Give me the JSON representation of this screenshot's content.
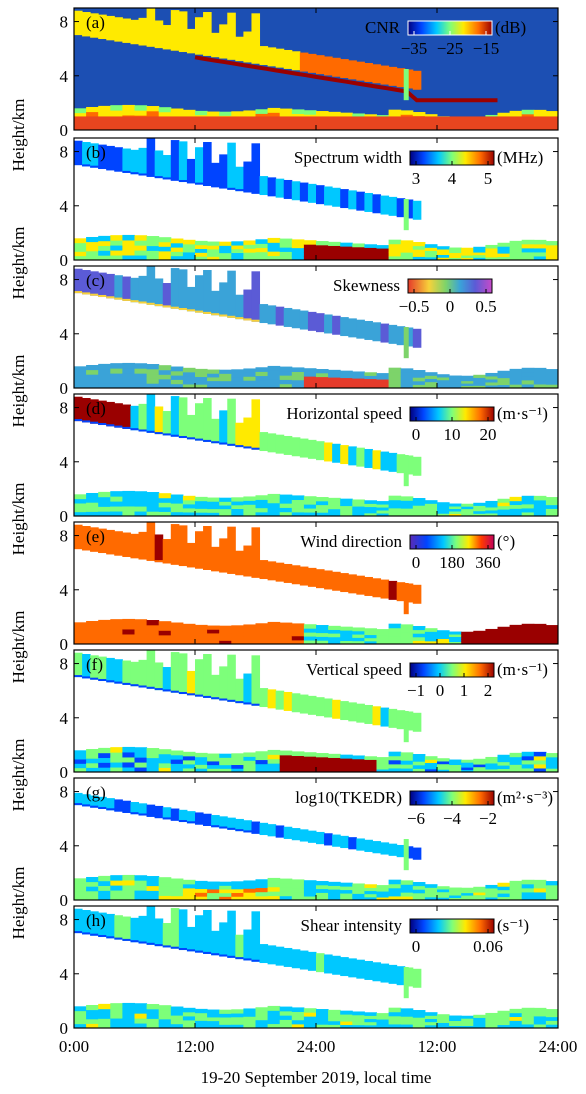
{
  "chart_data": {
    "type": "heatmap",
    "xlabel": "19-20 September 2019, local time",
    "x_ticks": [
      "0:00",
      "12:00",
      "24:00",
      "12:00",
      "24:00"
    ],
    "x_tick_hours": [
      0,
      12,
      24,
      36,
      48
    ],
    "xlim_hours": [
      0,
      48
    ],
    "ylabel": "Height/km",
    "ylim": [
      0,
      9
    ],
    "y_ticks": [
      0,
      4,
      8
    ],
    "grid": false,
    "panels": [
      {
        "id": "a",
        "tag": "(a)",
        "variable": "CNR",
        "unit": "(dB)",
        "colorbar_ticks": [
          "−35",
          "−25",
          "−15"
        ],
        "colormap": "jet",
        "show_ylabel": false
      },
      {
        "id": "b",
        "tag": "(b)",
        "variable": "Spectrum width",
        "unit": "(MHz)",
        "colorbar_ticks": [
          "3",
          "4",
          "5"
        ],
        "colormap": "jet",
        "show_ylabel": true
      },
      {
        "id": "c",
        "tag": "(c)",
        "variable": "Skewness",
        "unit": "",
        "colorbar_ticks": [
          "−0.5",
          "0",
          "0.5"
        ],
        "colormap": "diverging",
        "show_ylabel": true
      },
      {
        "id": "d",
        "tag": "(d)",
        "variable": "Horizontal speed",
        "unit": "(m·s⁻¹)",
        "colorbar_ticks": [
          "0",
          "10",
          "20"
        ],
        "colormap": "jet",
        "show_ylabel": true
      },
      {
        "id": "e",
        "tag": "(e)",
        "variable": "Wind direction",
        "unit": "(°)",
        "colorbar_ticks": [
          "0",
          "180",
          "360"
        ],
        "colormap": "jet",
        "show_ylabel": true
      },
      {
        "id": "f",
        "tag": "(f)",
        "variable": "Vertical speed",
        "unit": "(m·s⁻¹)",
        "colorbar_ticks": [
          "−1",
          "0",
          "1",
          "2"
        ],
        "colormap": "jet",
        "show_ylabel": true
      },
      {
        "id": "g",
        "tag": "(g)",
        "variable": "log10(TKEDR)",
        "unit": "(m²·s⁻³)",
        "colorbar_ticks": [
          "−6",
          "−4",
          "−2"
        ],
        "colormap": "jet",
        "show_ylabel": true
      },
      {
        "id": "h",
        "tag": "(h)",
        "variable": "Shear intensity",
        "unit": "(s⁻¹)",
        "colorbar_ticks": [
          "0",
          "0.06"
        ],
        "colormap": "jet",
        "show_ylabel": true
      }
    ],
    "colors": {
      "jet": [
        "#00007f",
        "#0044ff",
        "#00c8ff",
        "#7dff7a",
        "#ffea00",
        "#ff6a00",
        "#9a0000"
      ],
      "diverging": [
        "#e53a2a",
        "#f7d23a",
        "#7dd36a",
        "#3aa3d8",
        "#5b5bd6",
        "#c84ac9"
      ],
      "background_a": "#1c4fb3"
    }
  }
}
